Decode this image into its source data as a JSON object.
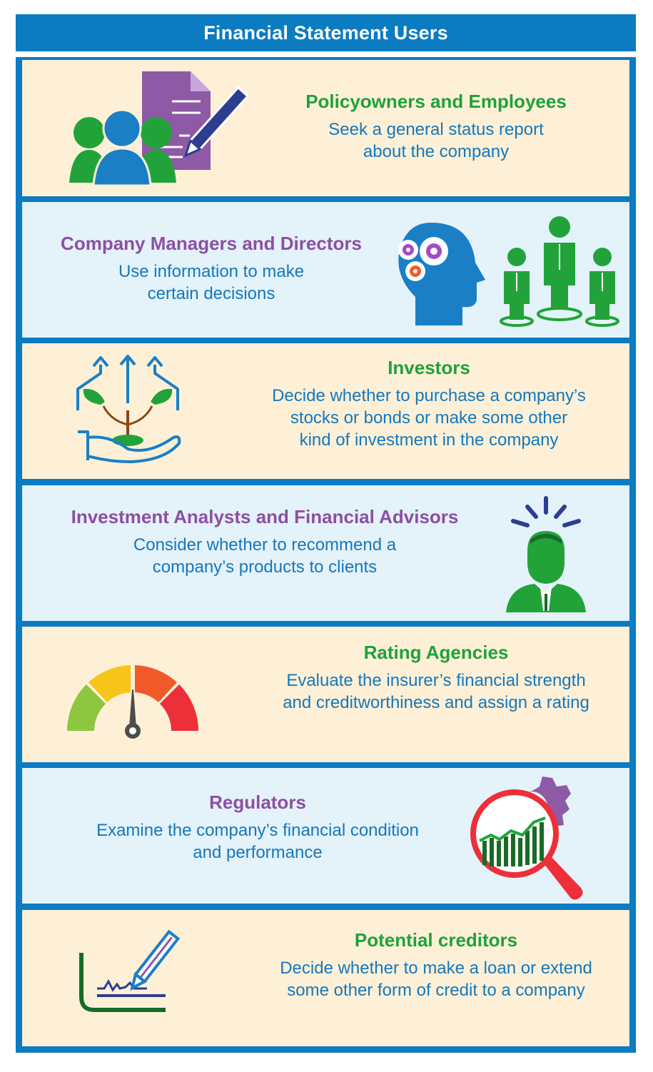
{
  "title": "Financial Statement Users",
  "colors": {
    "frame_blue": "#0b7bc2",
    "panel_cream": "#fdf0d6",
    "panel_blue": "#e4f2f9",
    "heading_green": "#1fa13b",
    "heading_purple": "#8d4fa3",
    "text_blue": "#1478bd"
  },
  "sections": [
    {
      "heading": "Policyowners and Employees",
      "description_lines": [
        "Seek a general status report",
        "about the company"
      ],
      "icon": "people-document-pen-icon"
    },
    {
      "heading": "Company Managers and Directors",
      "description_lines": [
        "Use information to make",
        "certain decisions"
      ],
      "icon": "head-gears-and-leaders-icon"
    },
    {
      "heading": "Investors",
      "description_lines": [
        "Decide whether to purchase a company’s",
        "stocks or bonds or make some other",
        "kind of investment in the company"
      ],
      "icon": "hand-plant-growth-icon"
    },
    {
      "heading": "Investment Analysts and Financial Advisors",
      "description_lines": [
        "Consider whether to recommend a",
        "company’s products to clients"
      ],
      "icon": "thinking-advisor-icon"
    },
    {
      "heading": "Rating Agencies",
      "description_lines": [
        "Evaluate the insurer’s financial strength",
        "and creditworthiness and assign a rating"
      ],
      "icon": "rating-gauge-icon"
    },
    {
      "heading": "Regulators",
      "description_lines": [
        "Examine the company’s financial condition",
        "and performance"
      ],
      "icon": "magnifier-chart-gear-icon"
    },
    {
      "heading": "Potential creditors",
      "description_lines": [
        "Decide whether to make a loan or extend",
        "some other form of credit to a company"
      ],
      "icon": "signature-pen-icon"
    }
  ]
}
